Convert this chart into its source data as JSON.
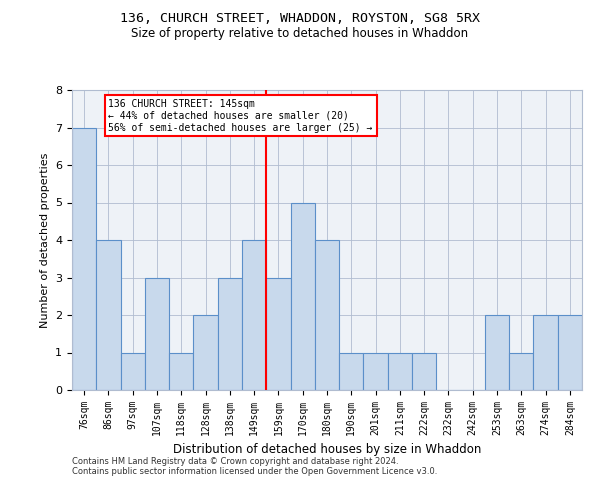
{
  "title_line1": "136, CHURCH STREET, WHADDON, ROYSTON, SG8 5RX",
  "title_line2": "Size of property relative to detached houses in Whaddon",
  "xlabel": "Distribution of detached houses by size in Whaddon",
  "ylabel": "Number of detached properties",
  "categories": [
    "76sqm",
    "86sqm",
    "97sqm",
    "107sqm",
    "118sqm",
    "128sqm",
    "138sqm",
    "149sqm",
    "159sqm",
    "170sqm",
    "180sqm",
    "190sqm",
    "201sqm",
    "211sqm",
    "222sqm",
    "232sqm",
    "242sqm",
    "253sqm",
    "263sqm",
    "274sqm",
    "284sqm"
  ],
  "values": [
    7,
    4,
    1,
    3,
    1,
    2,
    3,
    4,
    3,
    5,
    4,
    1,
    1,
    1,
    1,
    0,
    0,
    2,
    1,
    2,
    2
  ],
  "bar_color": "#c8d9ec",
  "bar_edge_color": "#5b8fc9",
  "ref_line_x": 7.5,
  "annotation_line1": "136 CHURCH STREET: 145sqm",
  "annotation_line2": "← 44% of detached houses are smaller (20)",
  "annotation_line3": "56% of semi-detached houses are larger (25) →",
  "annotation_box_color": "white",
  "annotation_box_edge_color": "red",
  "ref_line_color": "red",
  "ylim": [
    0,
    8
  ],
  "yticks": [
    0,
    1,
    2,
    3,
    4,
    5,
    6,
    7,
    8
  ],
  "footer_line1": "Contains HM Land Registry data © Crown copyright and database right 2024.",
  "footer_line2": "Contains public sector information licensed under the Open Government Licence v3.0.",
  "bg_color": "#eef2f7"
}
